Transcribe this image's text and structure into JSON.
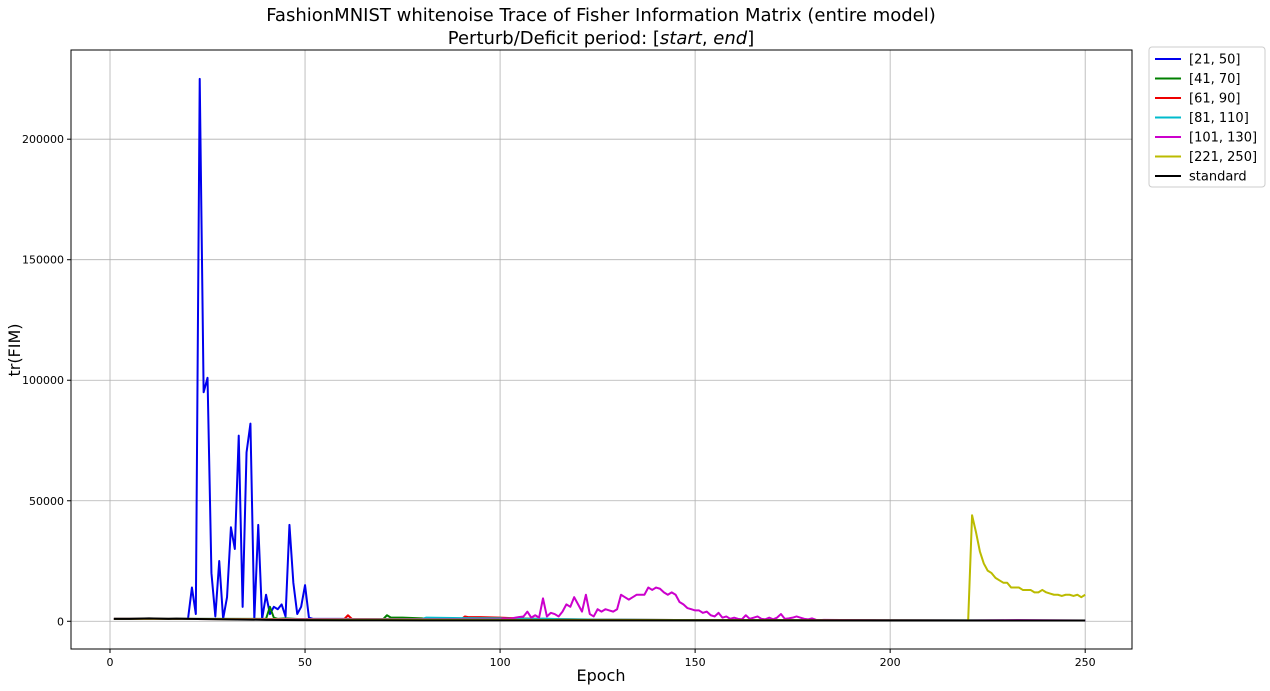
{
  "chart_data": {
    "type": "line",
    "title_line1": "FashionMNIST whitenoise Trace of Fisher Information Matrix (entire model)",
    "title_line2_prefix": "Perturb/Deficit period: [",
    "title_line2_start": "start",
    "title_line2_sep": ", ",
    "title_line2_end": "end",
    "title_line2_suffix": "]",
    "xlabel": "Epoch",
    "ylabel": "tr(FIM)",
    "xlim": [
      -10,
      262
    ],
    "ylim": [
      -11500,
      237000
    ],
    "xticks": [
      0,
      50,
      100,
      150,
      200,
      250
    ],
    "yticks": [
      0,
      50000,
      100000,
      150000,
      200000
    ],
    "xtick_labels": [
      "0",
      "50",
      "100",
      "150",
      "200",
      "250"
    ],
    "ytick_labels": [
      "0",
      "50000",
      "100000",
      "150000",
      "200000"
    ],
    "grid": true,
    "legend_position": "outside-top-right",
    "series": [
      {
        "name": "[21, 50]",
        "color": "#0000ee",
        "points": [
          [
            1,
            1000
          ],
          [
            20,
            1000
          ],
          [
            21,
            14000
          ],
          [
            22,
            3000
          ],
          [
            23,
            225000
          ],
          [
            24,
            95000
          ],
          [
            25,
            101000
          ],
          [
            26,
            20000
          ],
          [
            27,
            2000
          ],
          [
            28,
            25000
          ],
          [
            29,
            1000
          ],
          [
            30,
            10000
          ],
          [
            31,
            39000
          ],
          [
            32,
            30000
          ],
          [
            33,
            77000
          ],
          [
            34,
            6000
          ],
          [
            35,
            70000
          ],
          [
            36,
            82000
          ],
          [
            37,
            1000
          ],
          [
            38,
            40000
          ],
          [
            39,
            1000
          ],
          [
            40,
            11000
          ],
          [
            41,
            3000
          ],
          [
            42,
            6000
          ],
          [
            43,
            5000
          ],
          [
            44,
            7000
          ],
          [
            45,
            2000
          ],
          [
            46,
            40000
          ],
          [
            47,
            16000
          ],
          [
            48,
            3000
          ],
          [
            49,
            6000
          ],
          [
            50,
            15000
          ],
          [
            51,
            1500
          ],
          [
            52,
            1000
          ],
          [
            60,
            1000
          ],
          [
            70,
            800
          ],
          [
            100,
            600
          ],
          [
            150,
            500
          ],
          [
            200,
            400
          ],
          [
            250,
            300
          ]
        ]
      },
      {
        "name": "[41, 70]",
        "color": "#008000",
        "points": [
          [
            1,
            1000
          ],
          [
            40,
            1000
          ],
          [
            41,
            6000
          ],
          [
            42,
            1500
          ],
          [
            43,
            1000
          ],
          [
            45,
            1200
          ],
          [
            50,
            800
          ],
          [
            60,
            700
          ],
          [
            70,
            800
          ],
          [
            71,
            2500
          ],
          [
            72,
            1500
          ],
          [
            75,
            1500
          ],
          [
            80,
            1200
          ],
          [
            85,
            1000
          ],
          [
            90,
            800
          ],
          [
            100,
            600
          ],
          [
            150,
            500
          ],
          [
            200,
            400
          ],
          [
            250,
            300
          ]
        ]
      },
      {
        "name": "[61, 90]",
        "color": "#ee0000",
        "points": [
          [
            1,
            1000
          ],
          [
            60,
            800
          ],
          [
            61,
            2500
          ],
          [
            62,
            1000
          ],
          [
            70,
            800
          ],
          [
            80,
            800
          ],
          [
            90,
            800
          ],
          [
            91,
            2000
          ],
          [
            92,
            1700
          ],
          [
            95,
            1700
          ],
          [
            100,
            1500
          ],
          [
            105,
            1200
          ],
          [
            110,
            1000
          ],
          [
            120,
            800
          ],
          [
            150,
            500
          ],
          [
            200,
            400
          ],
          [
            250,
            300
          ]
        ]
      },
      {
        "name": "[81, 110]",
        "color": "#00bbcc",
        "points": [
          [
            1,
            1000
          ],
          [
            80,
            900
          ],
          [
            81,
            1500
          ],
          [
            90,
            1300
          ],
          [
            100,
            1200
          ],
          [
            110,
            1000
          ],
          [
            111,
            1100
          ],
          [
            115,
            900
          ],
          [
            120,
            800
          ],
          [
            125,
            700
          ],
          [
            150,
            500
          ],
          [
            200,
            400
          ],
          [
            250,
            300
          ]
        ]
      },
      {
        "name": "[101, 130]",
        "color": "#cc00cc",
        "points": [
          [
            1,
            1000
          ],
          [
            100,
            800
          ],
          [
            101,
            1200
          ],
          [
            102,
            1000
          ],
          [
            103,
            1200
          ],
          [
            104,
            1500
          ],
          [
            105,
            1800
          ],
          [
            106,
            2000
          ],
          [
            107,
            4000
          ],
          [
            108,
            1500
          ],
          [
            109,
            2500
          ],
          [
            110,
            1500
          ],
          [
            111,
            9500
          ],
          [
            112,
            2000
          ],
          [
            113,
            3500
          ],
          [
            114,
            3000
          ],
          [
            115,
            2000
          ],
          [
            116,
            4000
          ],
          [
            117,
            7000
          ],
          [
            118,
            6000
          ],
          [
            119,
            10000
          ],
          [
            120,
            7000
          ],
          [
            121,
            4000
          ],
          [
            122,
            11000
          ],
          [
            123,
            3000
          ],
          [
            124,
            2000
          ],
          [
            125,
            5000
          ],
          [
            126,
            4000
          ],
          [
            127,
            5000
          ],
          [
            128,
            4500
          ],
          [
            129,
            4000
          ],
          [
            130,
            5000
          ],
          [
            131,
            11000
          ],
          [
            132,
            10000
          ],
          [
            133,
            9000
          ],
          [
            134,
            10000
          ],
          [
            135,
            11000
          ],
          [
            136,
            11000
          ],
          [
            137,
            11000
          ],
          [
            138,
            14000
          ],
          [
            139,
            13000
          ],
          [
            140,
            14000
          ],
          [
            141,
            13500
          ],
          [
            142,
            12000
          ],
          [
            143,
            11000
          ],
          [
            144,
            12000
          ],
          [
            145,
            11000
          ],
          [
            146,
            8000
          ],
          [
            147,
            7000
          ],
          [
            148,
            5500
          ],
          [
            149,
            5000
          ],
          [
            150,
            4500
          ],
          [
            151,
            4500
          ],
          [
            152,
            3500
          ],
          [
            153,
            4000
          ],
          [
            154,
            2500
          ],
          [
            155,
            2000
          ],
          [
            156,
            3500
          ],
          [
            157,
            1500
          ],
          [
            158,
            2000
          ],
          [
            159,
            1000
          ],
          [
            160,
            1500
          ],
          [
            161,
            1000
          ],
          [
            162,
            800
          ],
          [
            163,
            2500
          ],
          [
            164,
            1000
          ],
          [
            165,
            1500
          ],
          [
            166,
            2000
          ],
          [
            167,
            1000
          ],
          [
            168,
            800
          ],
          [
            169,
            1500
          ],
          [
            170,
            800
          ],
          [
            171,
            1500
          ],
          [
            172,
            3000
          ],
          [
            173,
            1000
          ],
          [
            174,
            1200
          ],
          [
            175,
            1500
          ],
          [
            176,
            2000
          ],
          [
            177,
            1500
          ],
          [
            178,
            1000
          ],
          [
            179,
            800
          ],
          [
            180,
            1200
          ],
          [
            181,
            600
          ],
          [
            182,
            500
          ],
          [
            183,
            600
          ],
          [
            200,
            400
          ],
          [
            220,
            300
          ],
          [
            233,
            500
          ],
          [
            250,
            300
          ]
        ]
      },
      {
        "name": "[221, 250]",
        "color": "#bbbb00",
        "points": [
          [
            1,
            1000
          ],
          [
            20,
            1000
          ],
          [
            50,
            700
          ],
          [
            100,
            600
          ],
          [
            150,
            500
          ],
          [
            200,
            400
          ],
          [
            220,
            300
          ],
          [
            221,
            44000
          ],
          [
            222,
            37000
          ],
          [
            223,
            29000
          ],
          [
            224,
            24000
          ],
          [
            225,
            21000
          ],
          [
            226,
            20000
          ],
          [
            227,
            18000
          ],
          [
            228,
            17000
          ],
          [
            229,
            16000
          ],
          [
            230,
            16000
          ],
          [
            231,
            14000
          ],
          [
            232,
            14000
          ],
          [
            233,
            14000
          ],
          [
            234,
            13000
          ],
          [
            235,
            13000
          ],
          [
            236,
            13000
          ],
          [
            237,
            12000
          ],
          [
            238,
            12000
          ],
          [
            239,
            13000
          ],
          [
            240,
            12000
          ],
          [
            241,
            11500
          ],
          [
            242,
            11000
          ],
          [
            243,
            11000
          ],
          [
            244,
            10500
          ],
          [
            245,
            11000
          ],
          [
            246,
            11000
          ],
          [
            247,
            10500
          ],
          [
            248,
            11000
          ],
          [
            249,
            10000
          ],
          [
            250,
            11000
          ]
        ]
      },
      {
        "name": "standard",
        "color": "#000000",
        "points": [
          [
            1,
            1000
          ],
          [
            5,
            1000
          ],
          [
            10,
            1200
          ],
          [
            15,
            1000
          ],
          [
            17,
            1100
          ],
          [
            20,
            1000
          ],
          [
            25,
            900
          ],
          [
            30,
            800
          ],
          [
            35,
            700
          ],
          [
            40,
            600
          ],
          [
            50,
            500
          ],
          [
            60,
            450
          ],
          [
            80,
            400
          ],
          [
            100,
            400
          ],
          [
            150,
            400
          ],
          [
            200,
            350
          ],
          [
            250,
            300
          ]
        ]
      }
    ]
  }
}
